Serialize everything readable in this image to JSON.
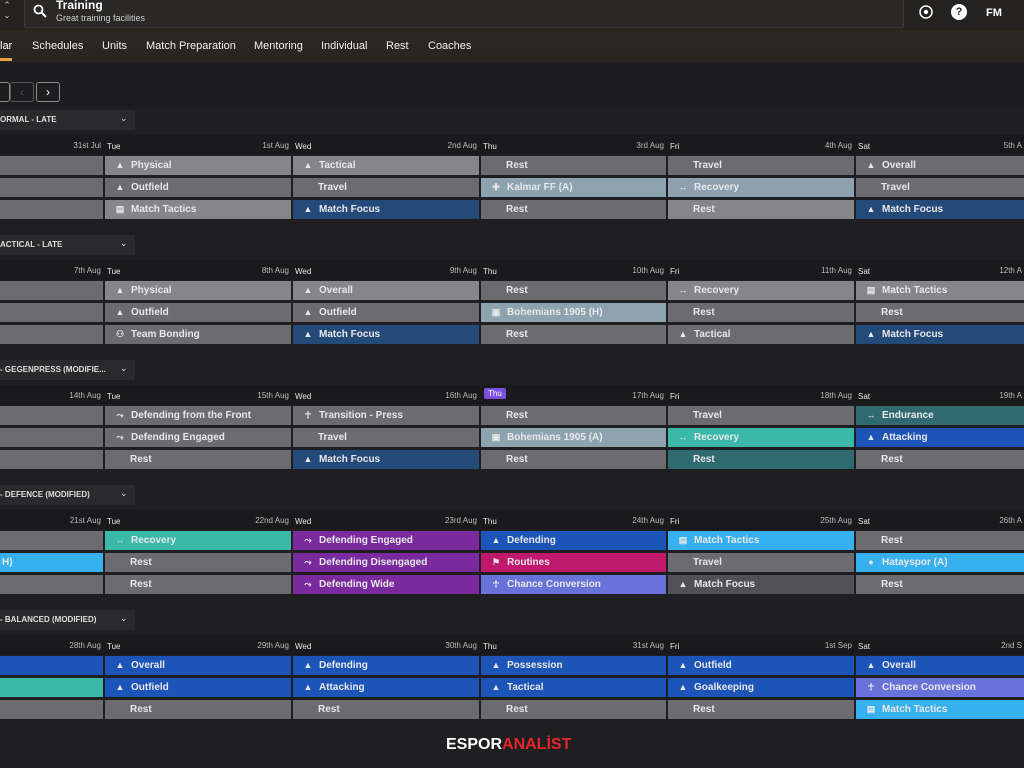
{
  "header": {
    "title": "Training",
    "subtitle": "Great training facilities",
    "fm_label": "FM",
    "help_label": "?"
  },
  "tabs": [
    "lar",
    "Schedules",
    "Units",
    "Match Preparation",
    "Mentoring",
    "Individual",
    "Rest",
    "Coaches"
  ],
  "nav": {
    "prev": "‹",
    "next": "›"
  },
  "weeks": [
    {
      "name": "ORMAL - LATE",
      "days": [
        {
          "name": "",
          "date": "31st Jul"
        },
        {
          "name": "Tue",
          "date": "1st Aug"
        },
        {
          "name": "Wed",
          "date": "2nd Aug"
        },
        {
          "name": "Thu",
          "date": "3rd Aug"
        },
        {
          "name": "Fri",
          "date": "4th Aug"
        },
        {
          "name": "Sat",
          "date": "5th A"
        }
      ],
      "sessions": [
        [
          {
            "label": "",
            "color": "grey",
            "icon": ""
          },
          {
            "label": "",
            "color": "grey",
            "icon": ""
          },
          {
            "label": "",
            "color": "grey",
            "icon": ""
          }
        ],
        [
          {
            "label": "Physical",
            "color": "lgrey",
            "icon": "cone"
          },
          {
            "label": "Outfield",
            "color": "grey",
            "icon": "cone"
          },
          {
            "label": "Match Tactics",
            "color": "lgrey",
            "icon": "board"
          }
        ],
        [
          {
            "label": "Tactical",
            "color": "lgrey",
            "icon": "cone"
          },
          {
            "label": "Travel",
            "color": "grey",
            "icon": ""
          },
          {
            "label": "Match Focus",
            "color": "navy",
            "icon": "cone"
          }
        ],
        [
          {
            "label": "Rest",
            "color": "grey",
            "icon": ""
          },
          {
            "label": "Kalmar FF (A)",
            "color": "blgrey",
            "icon": "crest"
          },
          {
            "label": "Rest",
            "color": "grey",
            "icon": ""
          }
        ],
        [
          {
            "label": "Travel",
            "color": "grey",
            "icon": ""
          },
          {
            "label": "Recovery",
            "color": "greyblue",
            "icon": "arrows"
          },
          {
            "label": "Rest",
            "color": "lgrey",
            "icon": ""
          }
        ],
        [
          {
            "label": "Overall",
            "color": "grey",
            "icon": "cone"
          },
          {
            "label": "Travel",
            "color": "grey",
            "icon": ""
          },
          {
            "label": "Match Focus",
            "color": "navy",
            "icon": "cone"
          }
        ]
      ]
    },
    {
      "name": "ACTICAL - LATE",
      "days": [
        {
          "name": "",
          "date": "7th Aug"
        },
        {
          "name": "Tue",
          "date": "8th Aug"
        },
        {
          "name": "Wed",
          "date": "9th Aug"
        },
        {
          "name": "Thu",
          "date": "10th Aug"
        },
        {
          "name": "Fri",
          "date": "11th Aug"
        },
        {
          "name": "Sat",
          "date": "12th A"
        }
      ],
      "sessions": [
        [
          {
            "label": "",
            "color": "grey",
            "icon": ""
          },
          {
            "label": "",
            "color": "grey",
            "icon": ""
          },
          {
            "label": "",
            "color": "grey",
            "icon": ""
          }
        ],
        [
          {
            "label": "Physical",
            "color": "lgrey",
            "icon": "cone"
          },
          {
            "label": "Outfield",
            "color": "grey",
            "icon": "cone"
          },
          {
            "label": "Team Bonding",
            "color": "grey",
            "icon": "people"
          }
        ],
        [
          {
            "label": "Overall",
            "color": "lgrey",
            "icon": "cone"
          },
          {
            "label": "Outfield",
            "color": "grey",
            "icon": "cone"
          },
          {
            "label": "Match Focus",
            "color": "navy",
            "icon": "cone"
          }
        ],
        [
          {
            "label": "Rest",
            "color": "grey",
            "icon": ""
          },
          {
            "label": "Bohemians 1905 (H)",
            "color": "blgrey",
            "icon": "crest-green"
          },
          {
            "label": "Rest",
            "color": "grey",
            "icon": ""
          }
        ],
        [
          {
            "label": "Recovery",
            "color": "lgrey",
            "icon": "arrows"
          },
          {
            "label": "Rest",
            "color": "grey",
            "icon": ""
          },
          {
            "label": "Tactical",
            "color": "grey",
            "icon": "cone"
          }
        ],
        [
          {
            "label": "Match Tactics",
            "color": "lgrey",
            "icon": "board"
          },
          {
            "label": "Rest",
            "color": "grey",
            "icon": ""
          },
          {
            "label": "Match Focus",
            "color": "navy",
            "icon": "cone"
          }
        ]
      ]
    },
    {
      "name": "- GEGENPRESS (MODIFIE...",
      "days": [
        {
          "name": "",
          "date": "14th Aug"
        },
        {
          "name": "Tue",
          "date": "15th Aug"
        },
        {
          "name": "Wed",
          "date": "16th Aug"
        },
        {
          "name": "Thu",
          "date": "17th Aug"
        },
        {
          "name": "Fri",
          "date": "18th Aug"
        },
        {
          "name": "Sat",
          "date": "19th A"
        }
      ],
      "today_index": 3,
      "sessions": [
        [
          {
            "label": "",
            "color": "grey",
            "icon": ""
          },
          {
            "label": "",
            "color": "grey",
            "icon": ""
          },
          {
            "label": "",
            "color": "grey",
            "icon": ""
          }
        ],
        [
          {
            "label": "Defending from the Front",
            "color": "grey",
            "icon": "run"
          },
          {
            "label": "Defending Engaged",
            "color": "grey",
            "icon": "run"
          },
          {
            "label": "Rest",
            "color": "grey",
            "icon": ""
          }
        ],
        [
          {
            "label": "Transition - Press",
            "color": "grey",
            "icon": "walk"
          },
          {
            "label": "Travel",
            "color": "grey",
            "icon": ""
          },
          {
            "label": "Match Focus",
            "color": "navy",
            "icon": "cone"
          }
        ],
        [
          {
            "label": "Rest",
            "color": "grey",
            "icon": ""
          },
          {
            "label": "Bohemians 1905 (A)",
            "color": "blgrey",
            "icon": "crest-green"
          },
          {
            "label": "Rest",
            "color": "grey",
            "icon": ""
          }
        ],
        [
          {
            "label": "Travel",
            "color": "grey",
            "icon": ""
          },
          {
            "label": "Recovery",
            "color": "teal",
            "icon": "arrows"
          },
          {
            "label": "Rest",
            "color": "darkteal",
            "icon": ""
          }
        ],
        [
          {
            "label": "Endurance",
            "color": "darkteal",
            "icon": "arrows"
          },
          {
            "label": "Attacking",
            "color": "blue",
            "icon": "cone"
          },
          {
            "label": "Rest",
            "color": "grey",
            "icon": ""
          }
        ]
      ]
    },
    {
      "name": "- DEFENCE (MODIFIED)",
      "days": [
        {
          "name": "",
          "date": "21st Aug"
        },
        {
          "name": "Tue",
          "date": "22nd Aug"
        },
        {
          "name": "Wed",
          "date": "23rd Aug"
        },
        {
          "name": "Thu",
          "date": "24th Aug"
        },
        {
          "name": "Fri",
          "date": "25th Aug"
        },
        {
          "name": "Sat",
          "date": "26th A"
        }
      ],
      "sessions": [
        [
          {
            "label": "",
            "color": "grey",
            "icon": ""
          },
          {
            "label": "H)",
            "color": "lightblue",
            "icon": ""
          },
          {
            "label": "",
            "color": "grey",
            "icon": ""
          }
        ],
        [
          {
            "label": "Recovery",
            "color": "teal",
            "icon": "arrows"
          },
          {
            "label": "Rest",
            "color": "grey",
            "icon": ""
          },
          {
            "label": "Rest",
            "color": "grey",
            "icon": ""
          }
        ],
        [
          {
            "label": "Defending Engaged",
            "color": "purple",
            "icon": "run"
          },
          {
            "label": "Defending Disengaged",
            "color": "purple",
            "icon": "run"
          },
          {
            "label": "Defending Wide",
            "color": "purple",
            "icon": "run"
          }
        ],
        [
          {
            "label": "Defending",
            "color": "blue",
            "icon": "cone"
          },
          {
            "label": "Routines",
            "color": "red",
            "icon": "flag"
          },
          {
            "label": "Chance Conversion",
            "color": "violet",
            "icon": "walk"
          }
        ],
        [
          {
            "label": "Match Tactics",
            "color": "lightblue",
            "icon": "board"
          },
          {
            "label": "Travel",
            "color": "grey",
            "icon": ""
          },
          {
            "label": "Match Focus",
            "color": "dark",
            "icon": "cone"
          }
        ],
        [
          {
            "label": "Rest",
            "color": "grey",
            "icon": ""
          },
          {
            "label": "Hatayspor (A)",
            "color": "lightblue",
            "icon": "crest-red"
          },
          {
            "label": "Rest",
            "color": "grey",
            "icon": ""
          }
        ]
      ]
    },
    {
      "name": "- BALANCED (MODIFIED)",
      "days": [
        {
          "name": "",
          "date": "28th Aug"
        },
        {
          "name": "Tue",
          "date": "29th Aug"
        },
        {
          "name": "Wed",
          "date": "30th Aug"
        },
        {
          "name": "Thu",
          "date": "31st Aug"
        },
        {
          "name": "Fri",
          "date": "1st Sep"
        },
        {
          "name": "Sat",
          "date": "2nd S"
        }
      ],
      "sessions": [
        [
          {
            "label": "",
            "color": "blue",
            "icon": ""
          },
          {
            "label": "",
            "color": "teal",
            "icon": ""
          },
          {
            "label": "",
            "color": "grey",
            "icon": ""
          }
        ],
        [
          {
            "label": "Overall",
            "color": "blue",
            "icon": "cone"
          },
          {
            "label": "Outfield",
            "color": "blue",
            "icon": "cone"
          },
          {
            "label": "Rest",
            "color": "grey",
            "icon": ""
          }
        ],
        [
          {
            "label": "Defending",
            "color": "blue",
            "icon": "cone"
          },
          {
            "label": "Attacking",
            "color": "blue",
            "icon": "cone"
          },
          {
            "label": "Rest",
            "color": "grey",
            "icon": ""
          }
        ],
        [
          {
            "label": "Possession",
            "color": "blue",
            "icon": "cone"
          },
          {
            "label": "Tactical",
            "color": "blue",
            "icon": "cone"
          },
          {
            "label": "Rest",
            "color": "grey",
            "icon": ""
          }
        ],
        [
          {
            "label": "Outfield",
            "color": "blue",
            "icon": "cone"
          },
          {
            "label": "Goalkeeping",
            "color": "blue",
            "icon": "cone"
          },
          {
            "label": "Rest",
            "color": "grey",
            "icon": ""
          }
        ],
        [
          {
            "label": "Overall",
            "color": "blue",
            "icon": "cone"
          },
          {
            "label": "Chance Conversion",
            "color": "violet",
            "icon": "walk"
          },
          {
            "label": "Match Tactics",
            "color": "lightblue",
            "icon": "board"
          }
        ]
      ]
    }
  ],
  "footer": {
    "logo_part1": "ESPOR",
    "logo_part2": "ANALİST"
  }
}
